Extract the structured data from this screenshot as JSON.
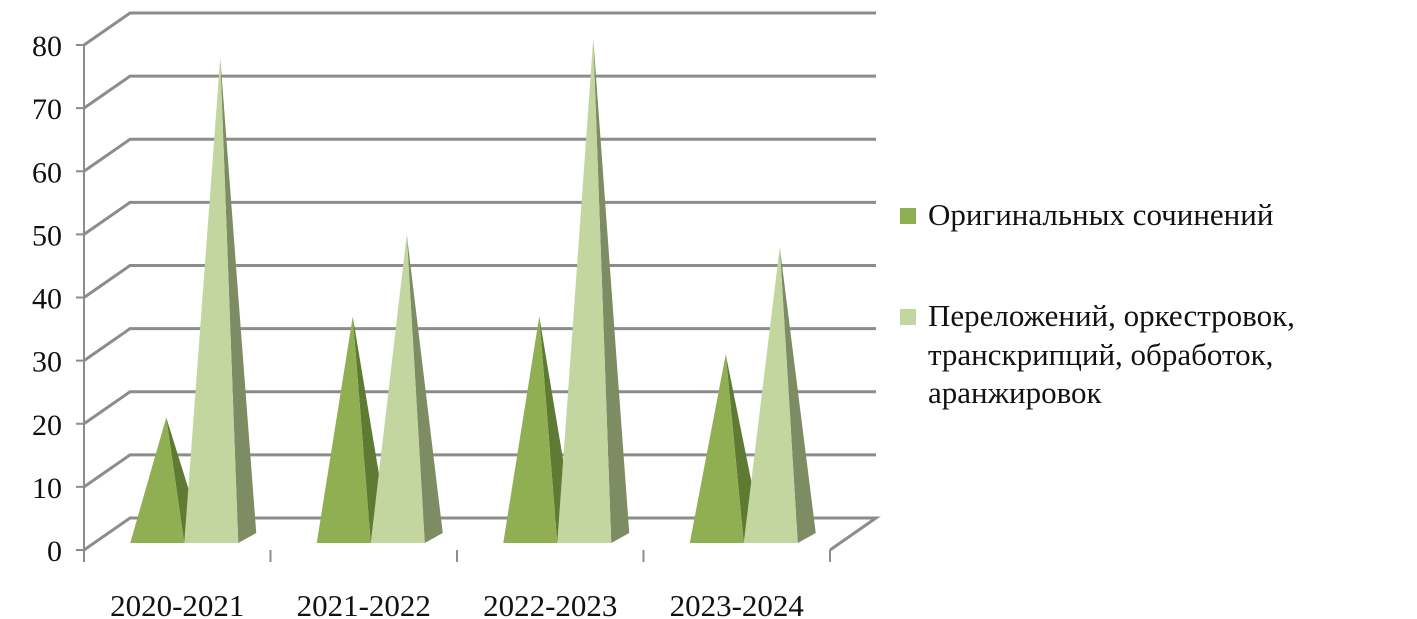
{
  "chart_data": {
    "type": "bar",
    "style": "3d-pyramid",
    "categories": [
      "2020-2021",
      "2021-2022",
      "2022-2023",
      "2023-2024"
    ],
    "series": [
      {
        "name": "Оригинальных сочинений",
        "values": [
          21,
          37,
          37,
          31
        ],
        "color": "#8faf52",
        "shade": "#5f7a32"
      },
      {
        "name": "Переложений, оркестровок, транскрипций, обработок, аранжировок",
        "values": [
          78,
          50,
          81,
          48
        ],
        "color": "#c3d6a0",
        "shade": "#7d8c63"
      }
    ],
    "yticks": [
      "0",
      "10",
      "20",
      "30",
      "40",
      "50",
      "60",
      "70",
      "80"
    ],
    "ylim": [
      0,
      80
    ],
    "grid": true,
    "legend_position": "right"
  },
  "legend": {
    "items": [
      {
        "label": "Оригинальных сочинений",
        "color": "#8faf52"
      },
      {
        "label": "Переложений, оркестровок, транскрипций, обработок, аранжировок",
        "color": "#c3d6a0"
      }
    ]
  }
}
